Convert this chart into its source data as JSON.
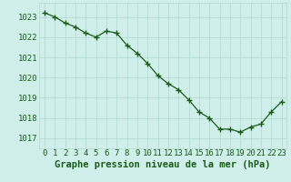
{
  "x": [
    0,
    1,
    2,
    3,
    4,
    5,
    6,
    7,
    8,
    9,
    10,
    11,
    12,
    13,
    14,
    15,
    16,
    17,
    18,
    19,
    20,
    21,
    22,
    23
  ],
  "y": [
    1023.2,
    1023.0,
    1022.7,
    1022.5,
    1022.2,
    1022.0,
    1022.3,
    1022.2,
    1021.6,
    1021.2,
    1020.7,
    1020.1,
    1019.7,
    1019.4,
    1018.9,
    1018.3,
    1018.0,
    1017.45,
    1017.45,
    1017.3,
    1017.55,
    1017.7,
    1018.3,
    1018.8
  ],
  "line_color": "#1a5c1a",
  "marker_color": "#1a5c1a",
  "bg_color": "#d0eeea",
  "grid_color": "#b0d8cc",
  "xlabel": "Graphe pression niveau de la mer (hPa)",
  "xlabel_color": "#1a5c1a",
  "tick_color": "#1a5c1a",
  "ylim_min": 1016.5,
  "ylim_max": 1023.7,
  "yticks": [
    1017,
    1018,
    1019,
    1020,
    1021,
    1022,
    1023
  ],
  "xticks": [
    0,
    1,
    2,
    3,
    4,
    5,
    6,
    7,
    8,
    9,
    10,
    11,
    12,
    13,
    14,
    15,
    16,
    17,
    18,
    19,
    20,
    21,
    22,
    23
  ],
  "font_size_xlabel": 7.5,
  "font_size_ticks": 6.5
}
